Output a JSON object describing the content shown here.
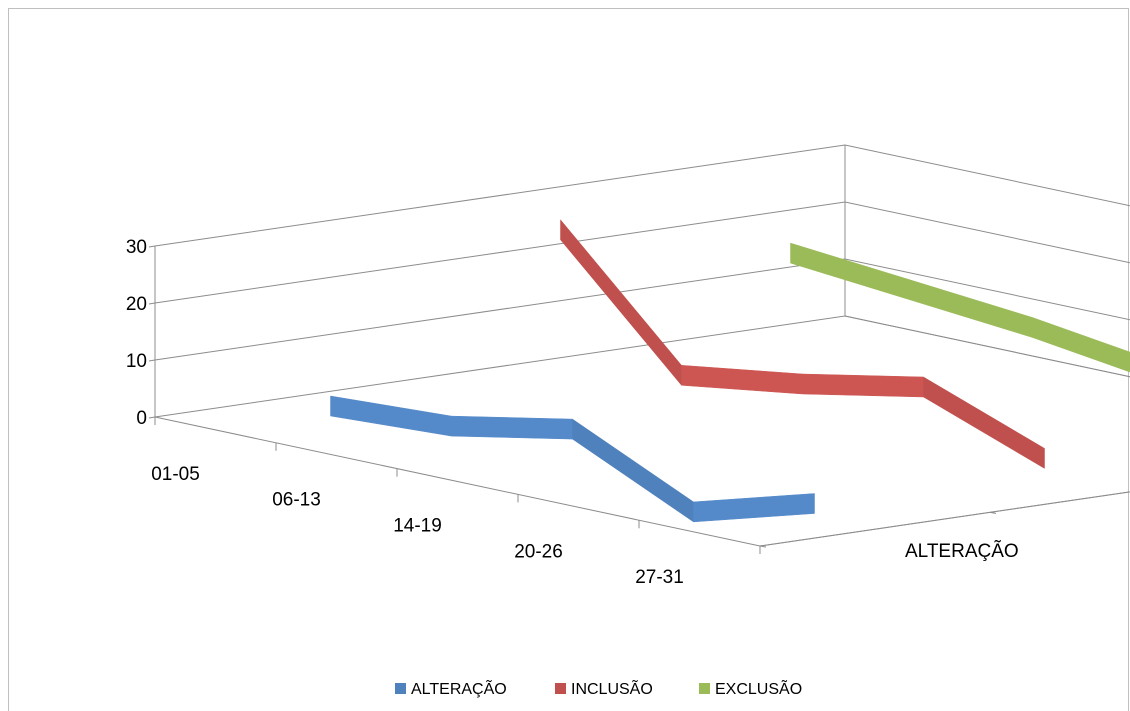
{
  "chart_data": {
    "type": "line",
    "style": "3d-ribbon",
    "categories": [
      "01-05",
      "06-13",
      "14-19",
      "20-26",
      "27-31"
    ],
    "series": [
      {
        "name": "ALTERAÇÃO",
        "values": [
          3,
          4,
          8,
          -2,
          4
        ],
        "color": "#4F81BD"
      },
      {
        "name": "INCLUSÃO",
        "values": [
          28,
          7,
          10,
          14,
          6
        ],
        "color": "#C0504D"
      },
      {
        "name": "EXCLUSÃO",
        "values": [
          18,
          16,
          14,
          11,
          8
        ],
        "color": "#9BBB59"
      }
    ],
    "y_ticks": [
      "0",
      "10",
      "20",
      "30"
    ],
    "ylim": [
      0,
      30
    ],
    "grid": true,
    "legend_position": "bottom"
  }
}
